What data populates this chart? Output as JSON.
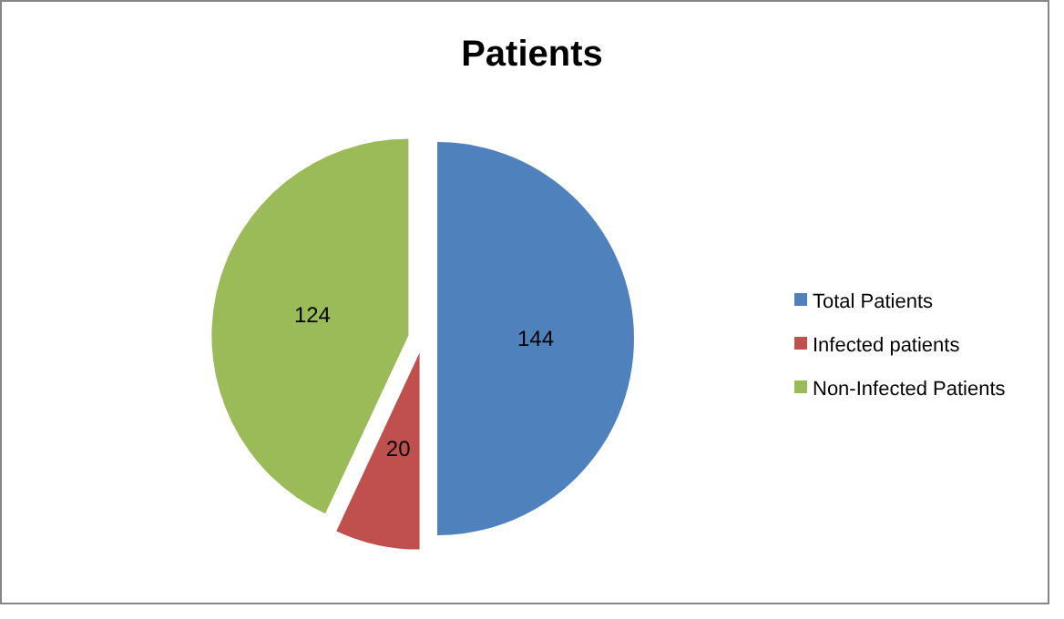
{
  "chart_data": {
    "type": "pie",
    "title": "Patients",
    "categories": [
      "Total Patients",
      "Infected patients",
      "Non-Infected Patients"
    ],
    "values": [
      144,
      20,
      124
    ],
    "colors": [
      "#4f81bd",
      "#c0504d",
      "#9bbb59"
    ],
    "data_labels": true,
    "legend": "right"
  }
}
